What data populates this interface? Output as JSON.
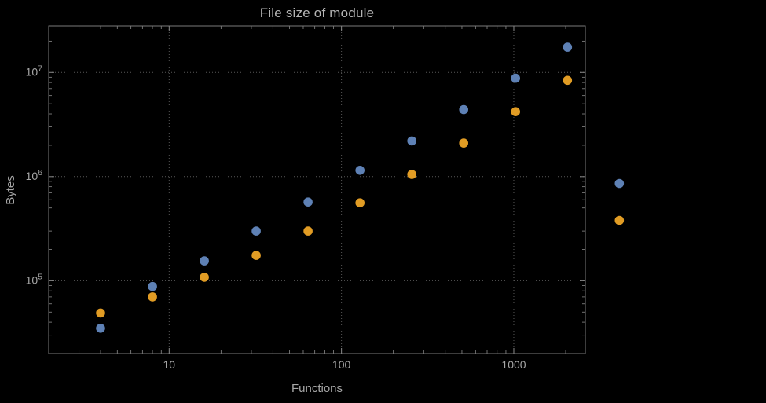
{
  "style": {
    "background": "#000000",
    "title_color": "#b4b4b4",
    "text_color": "#a6a6a6",
    "frame_color": "#7a7a7a",
    "tick_color": "#8c8c8c",
    "grid_color": "#585858"
  },
  "chart_data": {
    "type": "scatter",
    "title": "File size of module",
    "xlabel": "Functions",
    "ylabel": "Bytes",
    "x_scale": "log",
    "y_scale": "log",
    "grid": "dashed lines at major ticks",
    "legend": "none",
    "x_range": [
      2,
      2600
    ],
    "y_range": [
      20000,
      28000000
    ],
    "x_tick_values": [
      10,
      100,
      1000
    ],
    "x_tick_labels": [
      "10",
      "100",
      "1000"
    ],
    "y_tick_values": [
      100000,
      1000000,
      10000000
    ],
    "y_tick_labels": [
      "10^5",
      "10^6",
      "10^7"
    ],
    "series": [
      {
        "name": "blue",
        "color": "#5e81b5",
        "points": [
          [
            4,
            35000
          ],
          [
            8,
            88000
          ],
          [
            16,
            155000
          ],
          [
            32,
            300000
          ],
          [
            64,
            570000
          ],
          [
            128,
            1150000
          ],
          [
            256,
            2200000
          ],
          [
            512,
            4400000
          ],
          [
            1024,
            8800000
          ],
          [
            2048,
            17500000
          ],
          [
            4096,
            860000
          ]
        ]
      },
      {
        "name": "orange",
        "color": "#e19c24",
        "points": [
          [
            4,
            49000
          ],
          [
            8,
            70000
          ],
          [
            16,
            108000
          ],
          [
            32,
            175000
          ],
          [
            64,
            300000
          ],
          [
            128,
            560000
          ],
          [
            256,
            1050000
          ],
          [
            512,
            2100000
          ],
          [
            1024,
            4200000
          ],
          [
            2048,
            8400000
          ],
          [
            4096,
            380000
          ]
        ]
      }
    ]
  }
}
